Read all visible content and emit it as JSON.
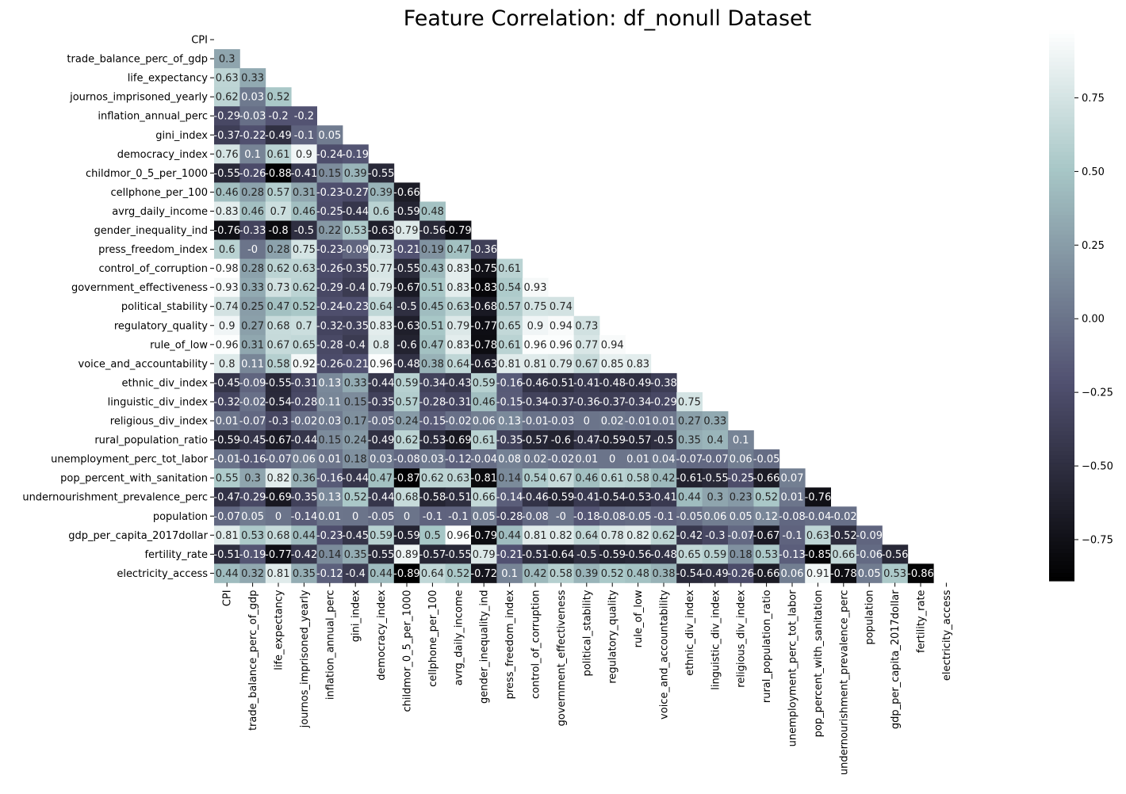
{
  "chart_data": {
    "type": "heatmap",
    "title": "Feature Correlation: df_nonull Dataset",
    "xlabel": "",
    "ylabel": "",
    "colormap": "bone",
    "mask": "upper triangle including diagonal",
    "value_range": [
      -0.89,
      0.98
    ],
    "colorbar_ticks": [
      "0.75",
      "0.50",
      "0.25",
      "0.00",
      "−0.25",
      "−0.50",
      "−0.75"
    ],
    "colorbar_tick_values": [
      0.75,
      0.5,
      0.25,
      0.0,
      -0.25,
      -0.5,
      -0.75
    ],
    "diagonal_label": "CPI",
    "labels": [
      "CPI",
      "trade_balance_perc_of_gdp",
      "life_expectancy",
      "journos_imprisoned_yearly",
      "inflation_annual_perc",
      "gini_index",
      "democracy_index",
      "childmor_0_5_per_1000",
      "cellphone_per_100",
      "avrg_daily_income",
      "gender_inequality_ind",
      "press_freedom_index",
      "control_of_corruption",
      "government_effectiveness",
      "political_stability",
      "regulatory_quality",
      "rule_of_low",
      "voice_and_accountability",
      "ethnic_div_index",
      "linguistic_div_index",
      "religious_div_index",
      "rural_population_ratio",
      "unemployment_perc_tot_labor",
      "pop_percent_with_sanitation",
      "undernourishment_prevalence_perc",
      "population",
      "gdp_per_capita_2017dollar",
      "fertility_rate",
      "electricity_access"
    ],
    "values": [
      [],
      [
        "0.3"
      ],
      [
        "0.63",
        "0.33"
      ],
      [
        "0.62",
        "0.03",
        "0.52"
      ],
      [
        "-0.29",
        "-0.03",
        "-0.2",
        "-0.2"
      ],
      [
        "-0.37",
        "-0.22",
        "-0.49",
        "-0.1",
        "0.05"
      ],
      [
        "0.76",
        "0.1",
        "0.61",
        "0.9",
        "-0.24",
        "-0.19"
      ],
      [
        "-0.55",
        "-0.26",
        "-0.88",
        "-0.41",
        "0.15",
        "0.39",
        "-0.55"
      ],
      [
        "0.46",
        "0.28",
        "0.57",
        "0.31",
        "-0.23",
        "-0.27",
        "0.39",
        "-0.66"
      ],
      [
        "0.83",
        "0.46",
        "0.7",
        "0.46",
        "-0.25",
        "-0.44",
        "0.6",
        "-0.59",
        "0.48"
      ],
      [
        "-0.76",
        "-0.33",
        "-0.8",
        "-0.5",
        "0.22",
        "0.53",
        "-0.63",
        "0.79",
        "-0.56",
        "-0.79"
      ],
      [
        "0.6",
        "-0",
        "0.28",
        "0.75",
        "-0.23",
        "-0.09",
        "0.73",
        "-0.21",
        "0.19",
        "0.47",
        "-0.36"
      ],
      [
        "0.98",
        "0.28",
        "0.62",
        "0.63",
        "-0.26",
        "-0.35",
        "0.77",
        "-0.55",
        "0.43",
        "0.83",
        "-0.75",
        "0.61"
      ],
      [
        "0.93",
        "0.33",
        "0.73",
        "0.62",
        "-0.29",
        "-0.4",
        "0.79",
        "-0.67",
        "0.51",
        "0.83",
        "-0.83",
        "0.54",
        "0.93"
      ],
      [
        "0.74",
        "0.25",
        "0.47",
        "0.52",
        "-0.24",
        "-0.23",
        "0.64",
        "-0.5",
        "0.45",
        "0.63",
        "-0.68",
        "0.57",
        "0.75",
        "0.74"
      ],
      [
        "0.9",
        "0.27",
        "0.68",
        "0.7",
        "-0.32",
        "-0.35",
        "0.83",
        "-0.63",
        "0.51",
        "0.79",
        "-0.77",
        "0.65",
        "0.9",
        "0.94",
        "0.73"
      ],
      [
        "0.96",
        "0.31",
        "0.67",
        "0.65",
        "-0.28",
        "-0.4",
        "0.8",
        "-0.6",
        "0.47",
        "0.83",
        "-0.78",
        "0.61",
        "0.96",
        "0.96",
        "0.77",
        "0.94"
      ],
      [
        "0.8",
        "0.11",
        "0.58",
        "0.92",
        "-0.26",
        "-0.21",
        "0.96",
        "-0.48",
        "0.38",
        "0.64",
        "-0.63",
        "0.81",
        "0.81",
        "0.79",
        "0.67",
        "0.85",
        "0.83"
      ],
      [
        "-0.45",
        "-0.09",
        "-0.55",
        "-0.31",
        "0.13",
        "0.33",
        "-0.44",
        "0.59",
        "-0.34",
        "-0.43",
        "0.59",
        "-0.16",
        "-0.46",
        "-0.51",
        "-0.41",
        "-0.48",
        "-0.49",
        "-0.38"
      ],
      [
        "-0.32",
        "-0.02",
        "-0.54",
        "-0.28",
        "0.11",
        "0.15",
        "-0.35",
        "0.57",
        "-0.28",
        "-0.31",
        "0.46",
        "-0.15",
        "-0.34",
        "-0.37",
        "-0.36",
        "-0.37",
        "-0.34",
        "-0.29",
        "0.75"
      ],
      [
        "0.01",
        "-0.07",
        "-0.3",
        "-0.02",
        "0.03",
        "0.17",
        "-0.05",
        "0.24",
        "-0.15",
        "-0.02",
        "0.06",
        "0.13",
        "-0.01",
        "-0.03",
        "0",
        "0.02",
        "-0.01",
        "0.01",
        "0.27",
        "0.33"
      ],
      [
        "-0.59",
        "-0.45",
        "-0.67",
        "-0.44",
        "0.15",
        "0.24",
        "-0.49",
        "0.62",
        "-0.53",
        "-0.69",
        "0.61",
        "-0.35",
        "-0.57",
        "-0.6",
        "-0.47",
        "-0.59",
        "-0.57",
        "-0.5",
        "0.35",
        "0.4",
        "0.1"
      ],
      [
        "-0.01",
        "-0.16",
        "-0.07",
        "0.06",
        "0.01",
        "0.18",
        "0.03",
        "-0.08",
        "0.03",
        "-0.12",
        "-0.04",
        "0.08",
        "0.02",
        "-0.02",
        "0.01",
        "0",
        "0.01",
        "0.04",
        "-0.07",
        "-0.07",
        "0.06",
        "-0.05"
      ],
      [
        "0.55",
        "0.3",
        "0.82",
        "0.36",
        "-0.16",
        "-0.44",
        "0.47",
        "-0.87",
        "0.62",
        "0.63",
        "-0.81",
        "0.14",
        "0.54",
        "0.67",
        "0.46",
        "0.61",
        "0.58",
        "0.42",
        "-0.61",
        "-0.55",
        "-0.25",
        "-0.66",
        "0.07"
      ],
      [
        "-0.47",
        "-0.29",
        "-0.69",
        "-0.35",
        "0.13",
        "0.52",
        "-0.44",
        "0.68",
        "-0.58",
        "-0.51",
        "0.66",
        "-0.14",
        "-0.46",
        "-0.59",
        "-0.41",
        "-0.54",
        "-0.53",
        "-0.41",
        "0.44",
        "0.3",
        "0.23",
        "0.52",
        "0.01",
        "-0.76"
      ],
      [
        "-0.07",
        "0.05",
        "0",
        "-0.14",
        "0.01",
        "0",
        "-0.05",
        "0",
        "-0.1",
        "-0.1",
        "0.05",
        "-0.28",
        "-0.08",
        "-0",
        "-0.18",
        "-0.08",
        "-0.05",
        "-0.1",
        "-0.05",
        "0.06",
        "0.05",
        "0.12",
        "-0.08",
        "-0.04",
        "-0.02"
      ],
      [
        "0.81",
        "0.53",
        "0.68",
        "0.44",
        "-0.23",
        "-0.45",
        "0.59",
        "-0.59",
        "0.5",
        "0.96",
        "-0.79",
        "0.44",
        "0.81",
        "0.82",
        "0.64",
        "0.78",
        "0.82",
        "0.62",
        "-0.42",
        "-0.3",
        "-0.07",
        "-0.67",
        "-0.1",
        "0.63",
        "-0.52",
        "-0.09"
      ],
      [
        "-0.51",
        "-0.19",
        "-0.77",
        "-0.42",
        "0.14",
        "0.35",
        "-0.55",
        "0.89",
        "-0.57",
        "-0.55",
        "0.79",
        "-0.21",
        "-0.51",
        "-0.64",
        "-0.5",
        "-0.59",
        "-0.56",
        "-0.48",
        "0.65",
        "0.59",
        "0.18",
        "0.53",
        "-0.13",
        "-0.85",
        "0.66",
        "-0.06",
        "-0.56"
      ],
      [
        "0.44",
        "0.32",
        "0.81",
        "0.35",
        "-0.12",
        "-0.4",
        "0.44",
        "-0.89",
        "0.64",
        "0.52",
        "-0.72",
        "0.1",
        "0.42",
        "0.58",
        "0.39",
        "0.52",
        "0.48",
        "0.38",
        "-0.54",
        "-0.49",
        "-0.26",
        "-0.66",
        "0.06",
        "0.91",
        "-0.78",
        "0.05",
        "0.53",
        "-0.86"
      ]
    ]
  }
}
